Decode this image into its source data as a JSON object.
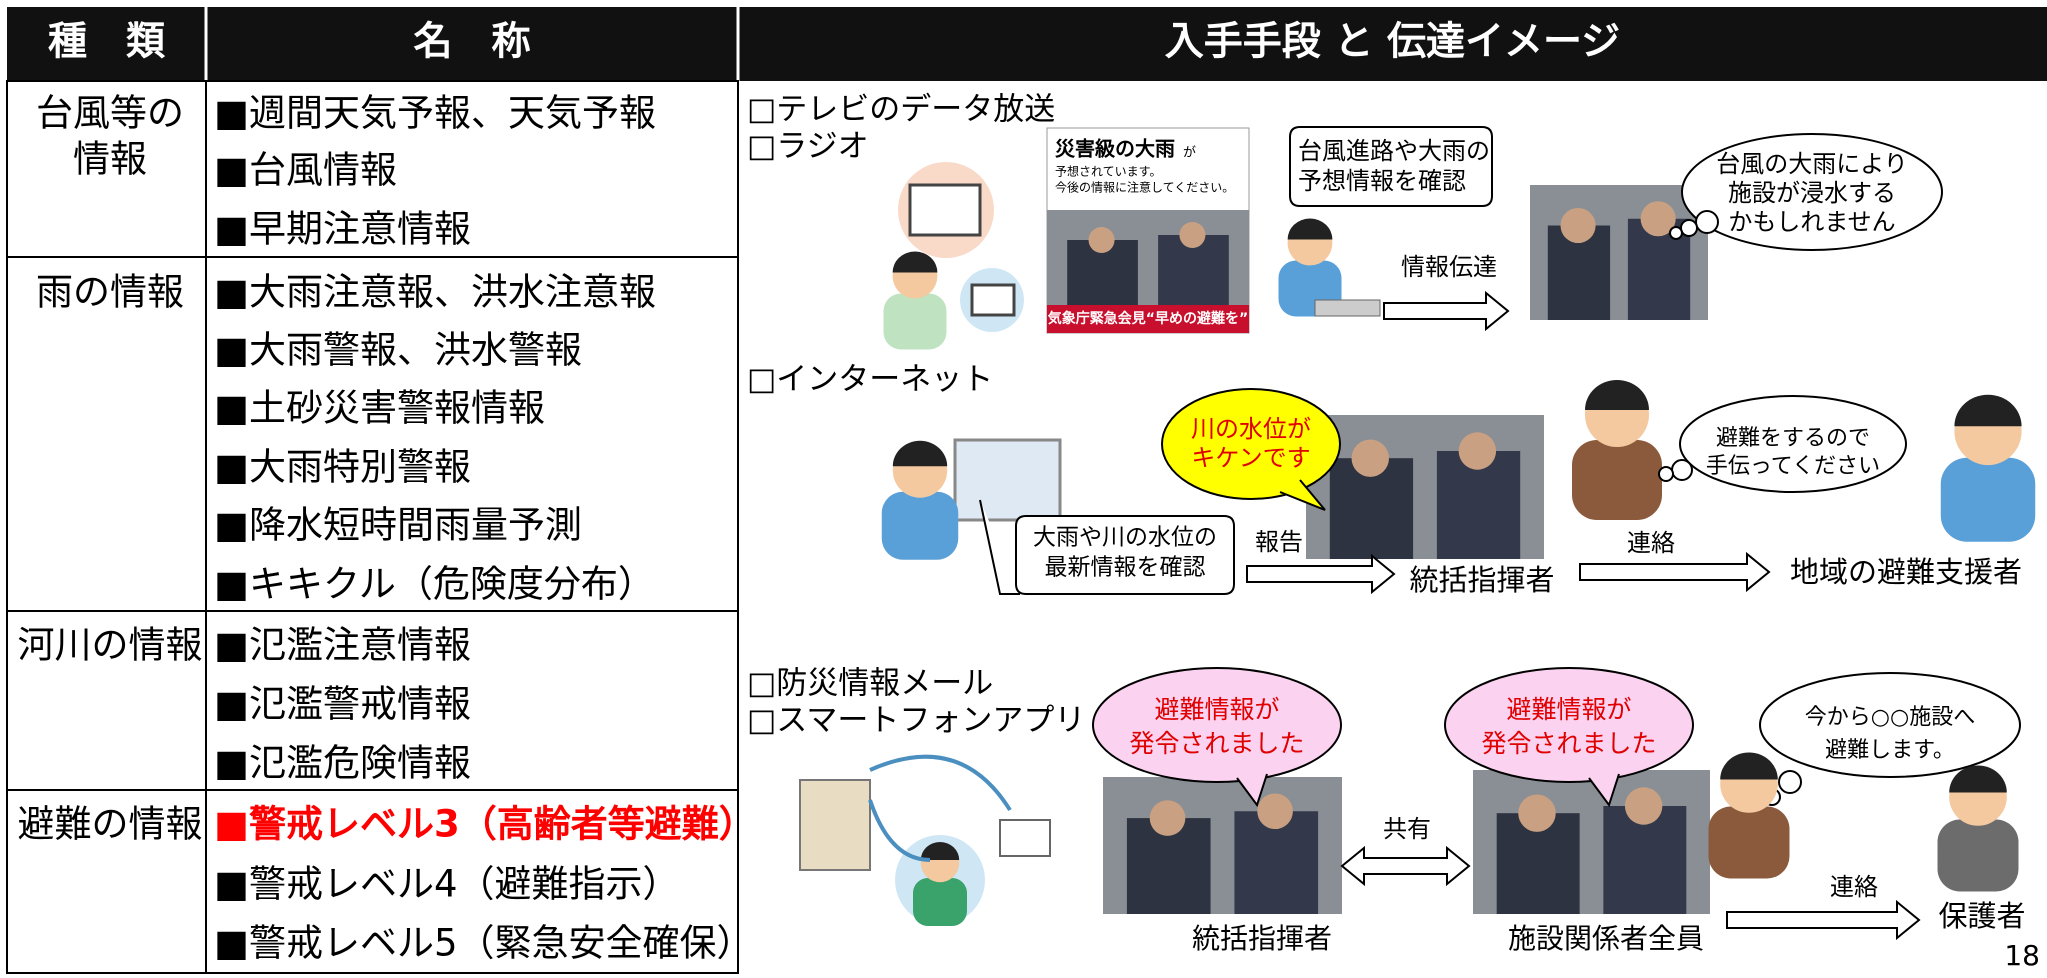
{
  "header": [
    "種　類",
    "名　称",
    "入手手段 と 伝達イメージ"
  ],
  "rows": [
    {
      "type": [
        "台風等の",
        "情報"
      ],
      "items": [
        {
          "text": "■週間天気予報、天気予報",
          "color": "#000000"
        },
        {
          "text": "■台風情報",
          "color": "#000000"
        },
        {
          "text": "■早期注意情報",
          "color": "#000000"
        }
      ]
    },
    {
      "type": [
        "雨の情報"
      ],
      "items": [
        {
          "text": "■大雨注意報、洪水注意報",
          "color": "#000000"
        },
        {
          "text": "■大雨警報、洪水警報",
          "color": "#000000"
        },
        {
          "text": "■土砂災害警報情報",
          "color": "#000000"
        },
        {
          "text": "■大雨特別警報",
          "color": "#000000"
        },
        {
          "text": "■降水短時間雨量予測",
          "color": "#000000"
        },
        {
          "text": "■キキクル（危険度分布）",
          "color": "#000000"
        }
      ]
    },
    {
      "type": [
        "河川の情報"
      ],
      "items": [
        {
          "text": "■氾濫注意情報",
          "color": "#000000"
        },
        {
          "text": "■氾濫警戒情報",
          "color": "#000000"
        },
        {
          "text": "■氾濫危険情報",
          "color": "#000000"
        }
      ]
    },
    {
      "type": [
        "避難の情報"
      ],
      "items": [
        {
          "text": "■警戒レベル3（高齢者等避難）",
          "color": "#ff0000"
        },
        {
          "text": "■警戒レベル4（避難指示）",
          "color": "#000000"
        },
        {
          "text": "■警戒レベル5（緊急安全確保）",
          "color": "#000000"
        }
      ]
    }
  ],
  "sections": [
    {
      "sources": [
        "□テレビのデータ放送",
        "□ラジオ"
      ],
      "screen": {
        "headline": "災害級の大雨",
        "headline_suffix": "が",
        "lines": [
          "予想されています。",
          "今後の情報に注意してください。"
        ],
        "banner": "気象庁緊急会見“早めの避難を”"
      },
      "callout": [
        "台風進路や大雨の",
        "予想情報を確認"
      ],
      "arrow_label": "情報伝達",
      "thought": [
        "台風の大雨により",
        "施設が浸水する",
        "かもしれません"
      ]
    },
    {
      "sources": [
        "□インターネット"
      ],
      "alert": [
        "川の水位が",
        "キケンです"
      ],
      "callout": [
        "大雨や川の水位の",
        "最新情報を確認"
      ],
      "report": "報告",
      "commander": "統括指揮者",
      "contact": "連絡",
      "supporter": "地域の避難支援者",
      "thought": [
        "避難をするので",
        "手伝ってください"
      ]
    },
    {
      "sources": [
        "□防災情報メール",
        "□スマートフォンアプリ"
      ],
      "notice1": [
        "避難情報が",
        "発令されました"
      ],
      "notice2": [
        "避難情報が",
        "発令されました"
      ],
      "share": "共有",
      "commander": "統括指揮者",
      "staff": "施設関係者全員",
      "thought": [
        "今から○○施設へ",
        "避難します。"
      ],
      "contact": "連絡",
      "guardian": "保護者"
    }
  ],
  "page_number": "18"
}
